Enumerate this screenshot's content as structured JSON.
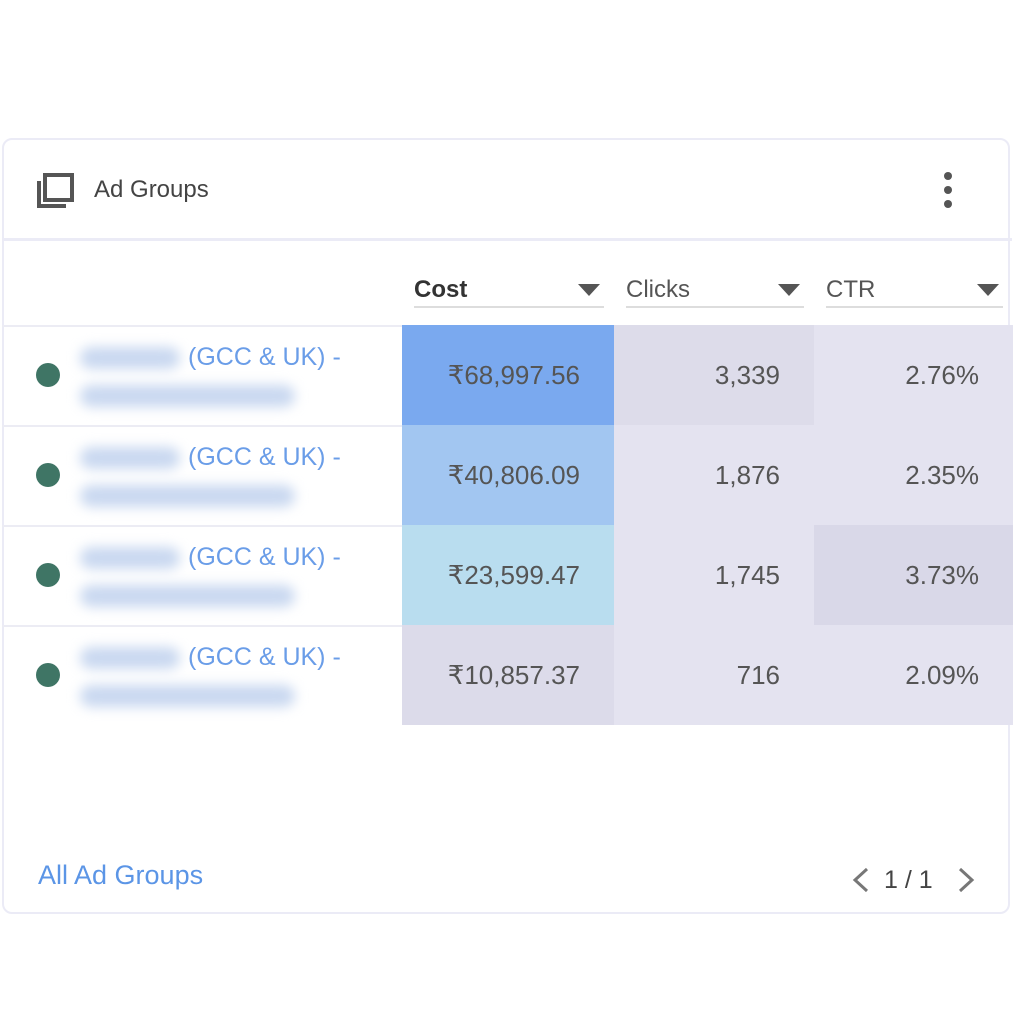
{
  "header": {
    "title": "Ad Groups"
  },
  "table": {
    "columns": [
      "Cost",
      "Clicks",
      "CTR"
    ],
    "rows": [
      {
        "name": "(GCC & UK) -",
        "cost": "₹68,997.56",
        "clicks": "3,339",
        "ctr": "2.76%",
        "cost_color": "#7aa9ef",
        "clicks_color": "#dddcea",
        "ctr_color": "#e4e3f0"
      },
      {
        "name": "(GCC & UK) -",
        "cost": "₹40,806.09",
        "clicks": "1,876",
        "ctr": "2.35%",
        "cost_color": "#a2c6f1",
        "clicks_color": "#e4e3f0",
        "ctr_color": "#e4e3f0"
      },
      {
        "name": "(GCC & UK) -",
        "cost": "₹23,599.47",
        "clicks": "1,745",
        "ctr": "3.73%",
        "cost_color": "#b9ddef",
        "clicks_color": "#e4e3f0",
        "ctr_color": "#d9d8e8"
      },
      {
        "name": "(GCC & UK) -",
        "cost": "₹10,857.37",
        "clicks": "716",
        "ctr": "2.09%",
        "cost_color": "#dcdbea",
        "clicks_color": "#e4e3f0",
        "ctr_color": "#e4e3f0"
      }
    ]
  },
  "footer": {
    "link": "All Ad Groups",
    "page": "1 / 1"
  }
}
